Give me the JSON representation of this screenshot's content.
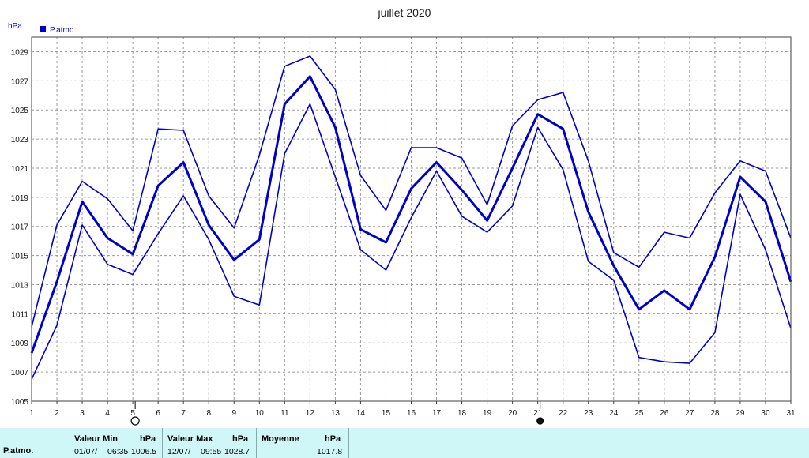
{
  "chart_data": {
    "type": "line",
    "title": "juillet 2020",
    "ylabel": "hPa",
    "ylim": [
      1005,
      1030
    ],
    "yticks": [
      1005,
      1007,
      1009,
      1011,
      1013,
      1015,
      1017,
      1019,
      1021,
      1023,
      1025,
      1027,
      1029
    ],
    "x": [
      1,
      2,
      3,
      4,
      5,
      6,
      7,
      8,
      9,
      10,
      11,
      12,
      13,
      14,
      15,
      16,
      17,
      18,
      19,
      20,
      21,
      22,
      23,
      24,
      25,
      26,
      27,
      28,
      29,
      30,
      31
    ],
    "grid": true,
    "legend": {
      "placement": "top-left",
      "entries": [
        "P.atmo."
      ]
    },
    "series": [
      {
        "name": "P.atmo.",
        "role": "max",
        "values": [
          1010.1,
          1017.1,
          1020.1,
          1018.9,
          1016.7,
          1023.7,
          1023.6,
          1019.1,
          1016.9,
          1021.9,
          1028.0,
          1028.7,
          1026.4,
          1020.5,
          1018.1,
          1022.4,
          1022.4,
          1021.7,
          1018.5,
          1023.9,
          1025.7,
          1026.2,
          1021.5,
          1015.2,
          1014.2,
          1016.6,
          1016.2,
          1019.3,
          1021.5,
          1020.8,
          1016.2
        ]
      },
      {
        "name": "P.atmo.",
        "role": "moyenne",
        "values": [
          1008.3,
          1013.2,
          1018.7,
          1016.2,
          1015.1,
          1019.8,
          1021.4,
          1017.1,
          1014.7,
          1016.1,
          1025.4,
          1027.3,
          1023.8,
          1016.8,
          1015.9,
          1019.6,
          1021.4,
          1019.5,
          1017.4,
          1021.0,
          1024.7,
          1023.7,
          1018.0,
          1014.3,
          1011.3,
          1012.6,
          1011.3,
          1014.9,
          1020.4,
          1018.7,
          1013.2
        ]
      },
      {
        "name": "P.atmo.",
        "role": "min",
        "values": [
          1006.5,
          1010.2,
          1017.1,
          1014.4,
          1013.7,
          1016.5,
          1019.1,
          1016.1,
          1012.2,
          1011.6,
          1022.0,
          1025.4,
          1020.4,
          1015.4,
          1014.0,
          1017.6,
          1020.8,
          1017.7,
          1016.6,
          1018.4,
          1023.8,
          1020.9,
          1014.6,
          1013.3,
          1008.0,
          1007.7,
          1007.6,
          1009.7,
          1019.2,
          1015.4,
          1010.0
        ]
      }
    ],
    "moon_phases": [
      {
        "day": 5,
        "phase": "full"
      },
      {
        "day": 21,
        "phase": "new"
      }
    ],
    "colors": {
      "series": "#0000cc",
      "grid": "#9a9a9a",
      "frame": "#404040"
    }
  },
  "stats": {
    "row_label": "P.atmo.",
    "min": {
      "header": "Valeur Min",
      "unit": "hPa",
      "date": "01/07/",
      "time": "06:35",
      "value": "1006.5"
    },
    "max": {
      "header": "Valeur Max",
      "unit": "hPa",
      "date": "12/07/",
      "time": "09:55",
      "value": "1028.7"
    },
    "avg": {
      "header": "Moyenne",
      "unit": "hPa",
      "value": "1017.8"
    },
    "background": "#cff7f7"
  }
}
